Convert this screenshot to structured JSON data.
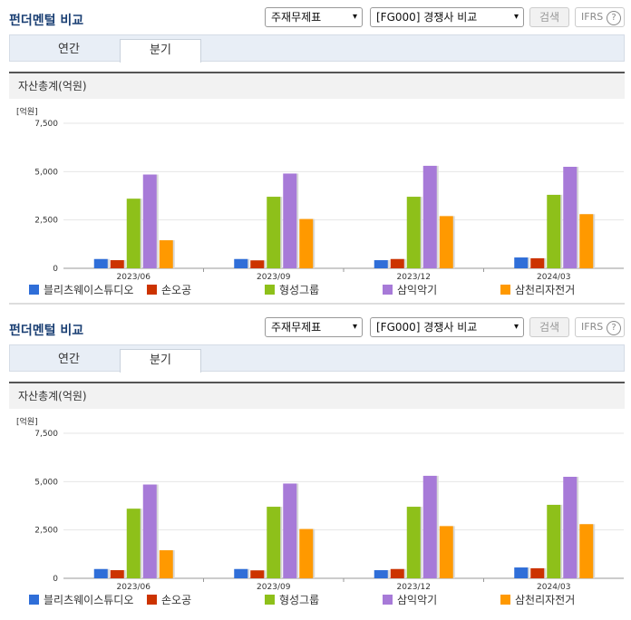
{
  "panels": [
    {
      "title": "펀더멘털 비교",
      "statement_select": "주재무제표",
      "compare_select": "[FG000] 경쟁사 비교",
      "search_label": "검색",
      "ifrs_label": "IFRS",
      "ifrs_help": "?",
      "tabs": [
        "연간",
        "분기"
      ],
      "active_tab": "분기",
      "section_title": "자산총계(억원)"
    },
    {
      "title": "펀더멘털 비교",
      "statement_select": "주재무제표",
      "compare_select": "[FG000] 경쟁사 비교",
      "search_label": "검색",
      "ifrs_label": "IFRS",
      "ifrs_help": "?",
      "tabs": [
        "연간",
        "분기"
      ],
      "active_tab": "분기",
      "section_title": "자산총계(억원)"
    }
  ],
  "chart_data": [
    {
      "type": "bar",
      "unit_label": "[억원]",
      "categories": [
        "2023/06",
        "2023/09",
        "2023/12",
        "2024/03"
      ],
      "ylim": [
        0,
        7500
      ],
      "yticks": [
        "0",
        "2,500",
        "5,000",
        "7,500"
      ],
      "ytick_values": [
        0,
        2500,
        5000,
        7500
      ],
      "series": [
        {
          "name": "블리츠웨이스튜디오",
          "color": "#2f6ed8",
          "values": [
            480,
            480,
            420,
            560
          ]
        },
        {
          "name": "손오공",
          "color": "#cc3300",
          "values": [
            420,
            410,
            480,
            520
          ]
        },
        {
          "name": "형성그룹",
          "color": "#8ec01a",
          "values": [
            3600,
            3700,
            3700,
            3800
          ]
        },
        {
          "name": "삼익악기",
          "color": "#a77ad8",
          "values": [
            4850,
            4900,
            5300,
            5250
          ]
        },
        {
          "name": "삼천리자전거",
          "color": "#ff9900",
          "values": [
            1450,
            2550,
            2700,
            2800
          ]
        }
      ]
    },
    {
      "type": "bar",
      "unit_label": "[억원]",
      "categories": [
        "2023/06",
        "2023/09",
        "2023/12",
        "2024/03"
      ],
      "ylim": [
        0,
        7500
      ],
      "yticks": [
        "0",
        "2,500",
        "5,000",
        "7,500"
      ],
      "ytick_values": [
        0,
        2500,
        5000,
        7500
      ],
      "series": [
        {
          "name": "블리츠웨이스튜디오",
          "color": "#2f6ed8",
          "values": [
            480,
            480,
            420,
            560
          ]
        },
        {
          "name": "손오공",
          "color": "#cc3300",
          "values": [
            420,
            410,
            480,
            520
          ]
        },
        {
          "name": "형성그룹",
          "color": "#8ec01a",
          "values": [
            3600,
            3700,
            3700,
            3800
          ]
        },
        {
          "name": "삼익악기",
          "color": "#a77ad8",
          "values": [
            4850,
            4900,
            5300,
            5250
          ]
        },
        {
          "name": "삼천리자전거",
          "color": "#ff9900",
          "values": [
            1450,
            2550,
            2700,
            2800
          ]
        }
      ]
    }
  ]
}
